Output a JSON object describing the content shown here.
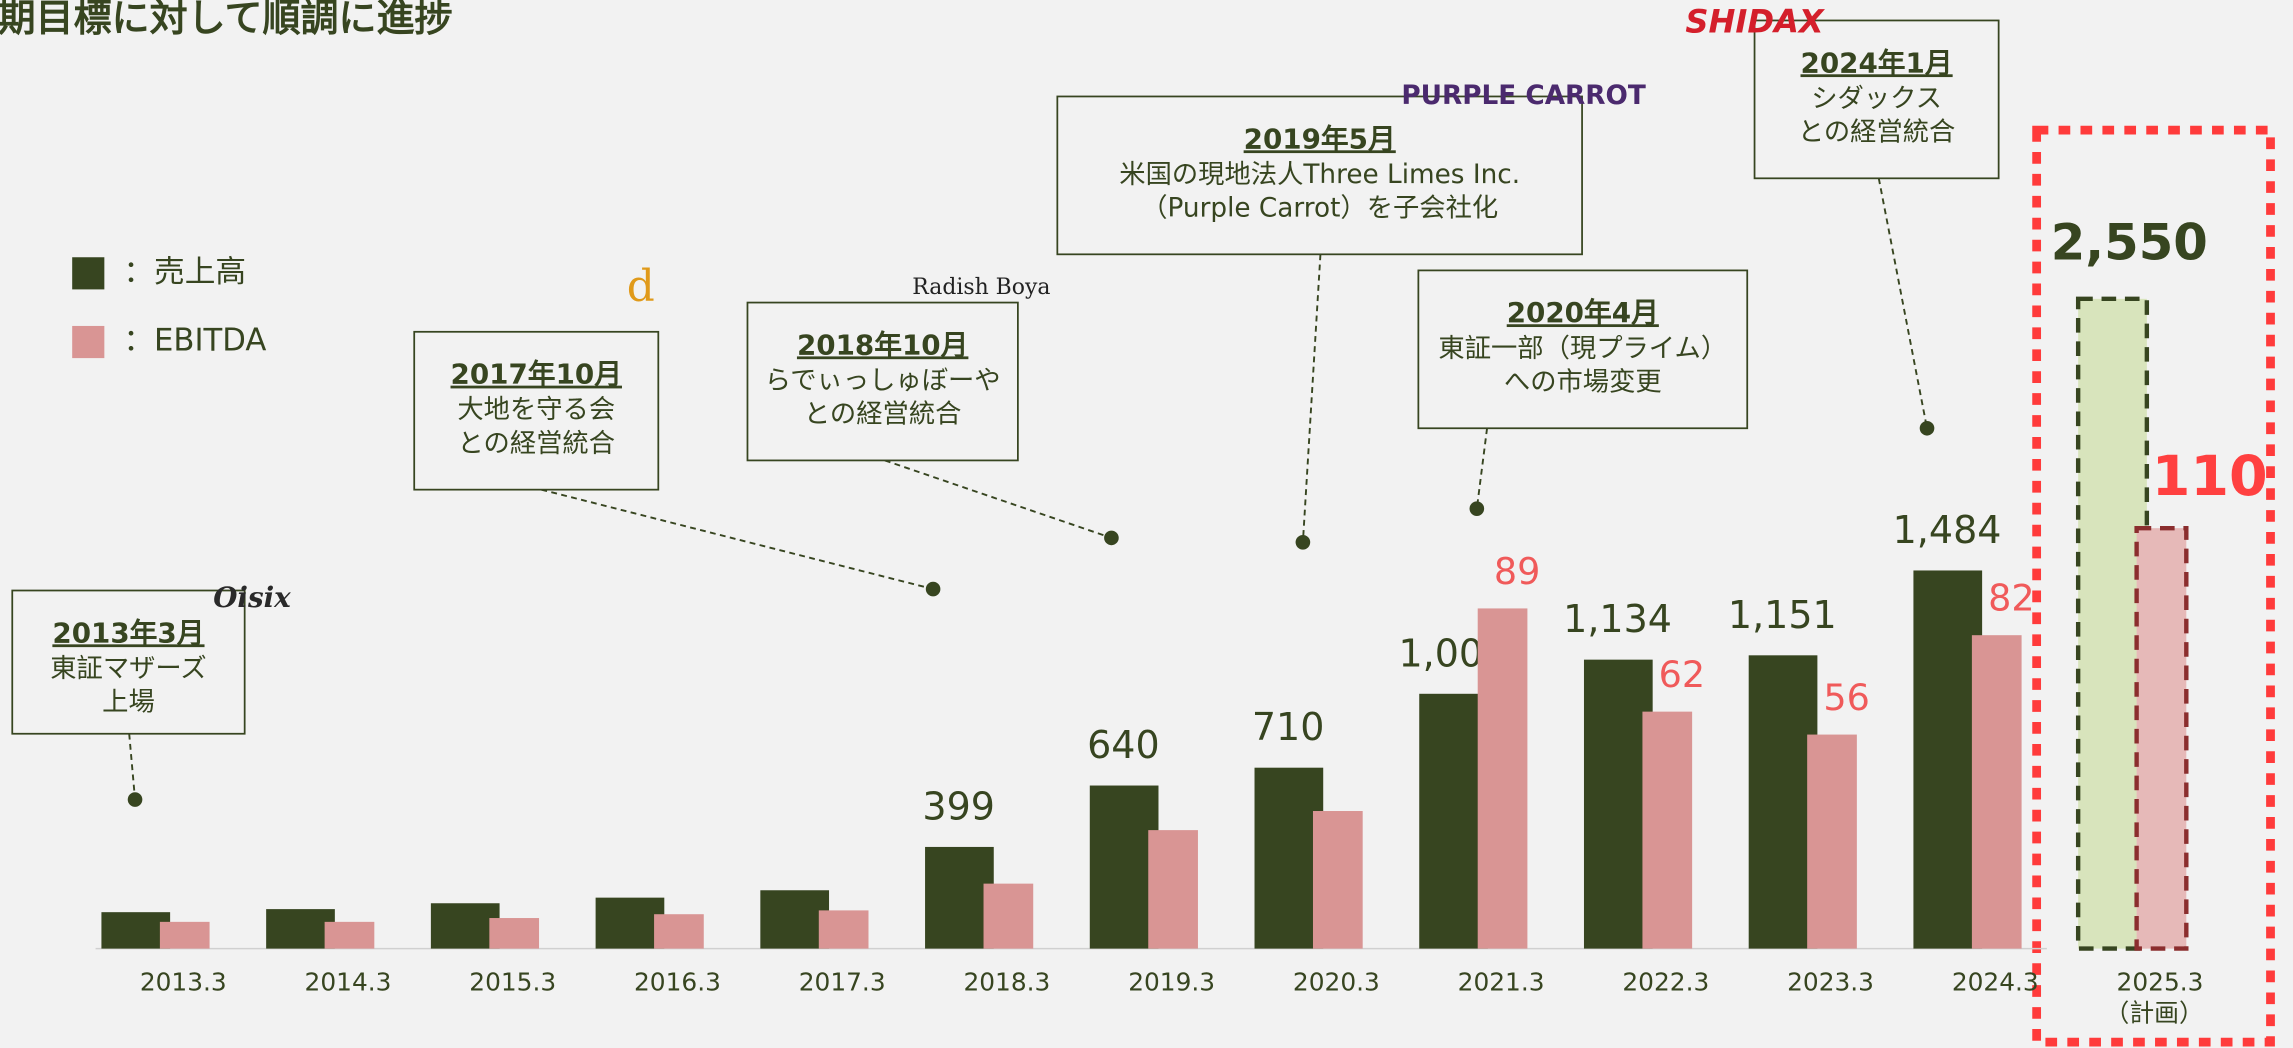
{
  "chart_data": {
    "type": "bar",
    "title": "中期目標に対して順調に進捗",
    "categories": [
      "2013.3",
      "2014.3",
      "2015.3",
      "2016.3",
      "2017.3",
      "2018.3",
      "2019.3",
      "2020.3",
      "2021.3",
      "2022.3",
      "2023.3",
      "2024.3",
      "2025.3"
    ],
    "forecast_label": "（計画）",
    "ylim": [
      0,
      3000
    ],
    "y2lim": [
      0,
      200
    ],
    "legend": "top-left",
    "series": [
      {
        "name": "：売上高",
        "color": "#374520",
        "forecast_color": "#d8e4bc",
        "values": [
          143,
          155,
          178,
          200,
          229,
          399,
          640,
          710,
          1000,
          1134,
          1151,
          1484,
          2550
        ],
        "value_labels": [
          null,
          null,
          null,
          null,
          null,
          "399",
          "640",
          "710",
          "1,000",
          "1,134",
          "1,151",
          "1,484",
          "2,550"
        ]
      },
      {
        "name": "：EBITDA",
        "color": "#d99594",
        "forecast_color": "#e6b9b8",
        "axis": "y2",
        "values": [
          7,
          7,
          8,
          9,
          10,
          17,
          31,
          36,
          89,
          62,
          56,
          82,
          110
        ],
        "value_labels": [
          null,
          null,
          null,
          null,
          null,
          null,
          null,
          null,
          "89",
          "62",
          "56",
          "82",
          "110"
        ]
      }
    ],
    "annotations": [
      {
        "date": "2013年3月",
        "lines": [
          "東証マザーズ",
          "上場"
        ],
        "logo": "Oisix"
      },
      {
        "date": "2017年10月",
        "lines": [
          "大地を守る会",
          "との経営統合"
        ],
        "logo": "d"
      },
      {
        "date": "2018年10月",
        "lines": [
          "らでぃっしゅぼーや",
          "との経営統合"
        ],
        "logo": "Radish Boya"
      },
      {
        "date": "2019年5月",
        "lines": [
          "米国の現地法人Three Limes Inc.",
          "（Purple Carrot）を子会社化"
        ],
        "logo": "PURPLE CARROT"
      },
      {
        "date": "2020年4月",
        "lines": [
          "東証一部（現プライム）",
          "への市場変更"
        ]
      },
      {
        "date": "2024年1月",
        "lines": [
          "シダックス",
          "との経営統合"
        ],
        "logo": "SHIDAX"
      }
    ]
  }
}
